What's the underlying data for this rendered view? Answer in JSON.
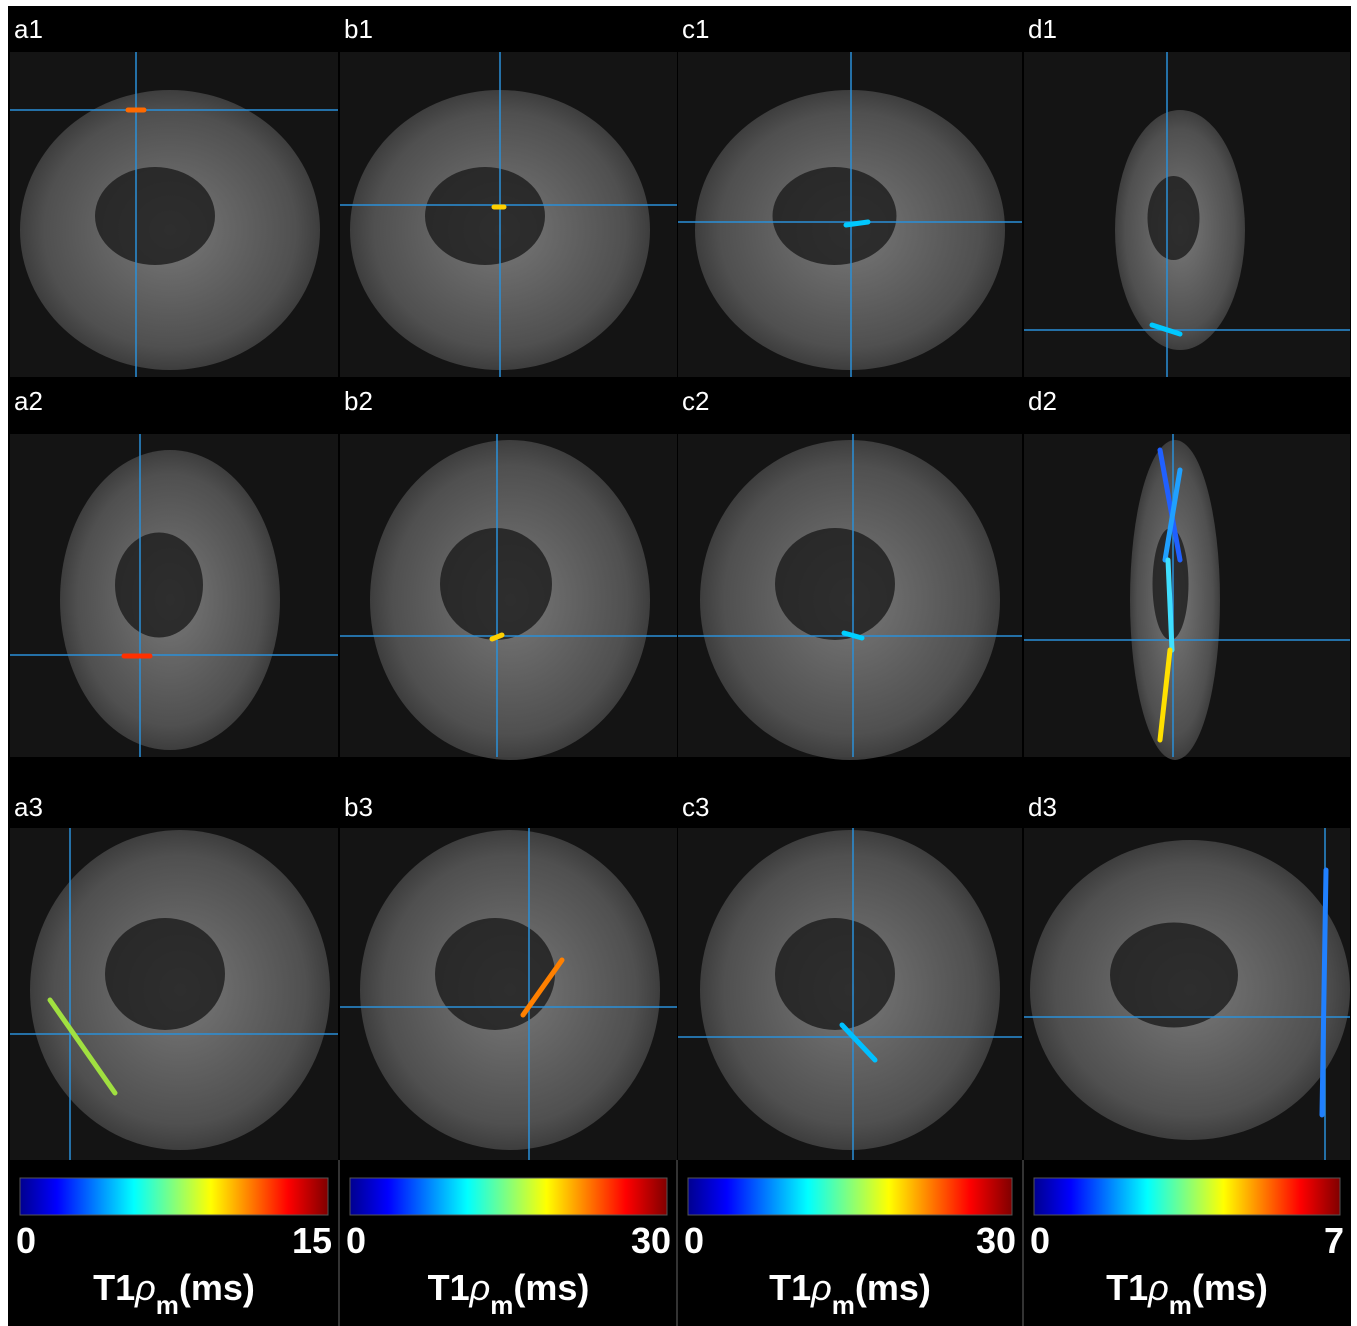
{
  "panels": [
    {
      "label": "a1"
    },
    {
      "label": "b1"
    },
    {
      "label": "c1"
    },
    {
      "label": "d1"
    },
    {
      "label": "a2"
    },
    {
      "label": "b2"
    },
    {
      "label": "c2"
    },
    {
      "label": "d2"
    },
    {
      "label": "a3"
    },
    {
      "label": "b3"
    },
    {
      "label": "c3"
    },
    {
      "label": "d3"
    }
  ],
  "colorbars": [
    {
      "min": 0,
      "max": 15,
      "label": {
        "main": "T1",
        "symbol": "ρ",
        "subscript": "m",
        "unit": "(ms)"
      }
    },
    {
      "min": 0,
      "max": 30,
      "label": {
        "main": "T1",
        "symbol": "ρ",
        "subscript": "m",
        "unit": "(ms)"
      }
    },
    {
      "min": 0,
      "max": 30,
      "label": {
        "main": "T1",
        "symbol": "ρ",
        "subscript": "m",
        "unit": "(ms)"
      }
    },
    {
      "min": 0,
      "max": 7,
      "label": {
        "main": "T1",
        "symbol": "ρ",
        "subscript": "m",
        "unit": "(ms)"
      }
    }
  ]
}
